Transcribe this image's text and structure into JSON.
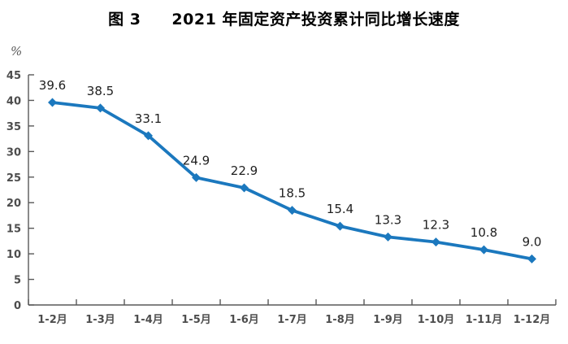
{
  "figure": {
    "label": "图 3",
    "title": "2021 年固定资产投资累计同比增长速度"
  },
  "chart_data": {
    "type": "line",
    "title": "图 3 2021 年固定资产投资累计同比增长速度",
    "categories": [
      "1-2月",
      "1-3月",
      "1-4月",
      "1-5月",
      "1-6月",
      "1-7月",
      "1-8月",
      "1-9月",
      "1-10月",
      "1-11月",
      "1-12月"
    ],
    "values": [
      39.6,
      38.5,
      33.1,
      24.9,
      22.9,
      18.5,
      15.4,
      13.3,
      12.3,
      10.8,
      9.0
    ],
    "xlabel": "",
    "ylabel": "%",
    "ylim": [
      0,
      45
    ],
    "ytick_interval": 5,
    "grid": false,
    "legend": false,
    "data_labels": true,
    "marker": "diamond",
    "colors": {
      "line": "#1B78BE",
      "axis": "#595959",
      "tick_labels": "#4D4D4D",
      "data_labels": "#1F1F1F",
      "title": "#000000",
      "background": "#FFFFFF"
    }
  }
}
